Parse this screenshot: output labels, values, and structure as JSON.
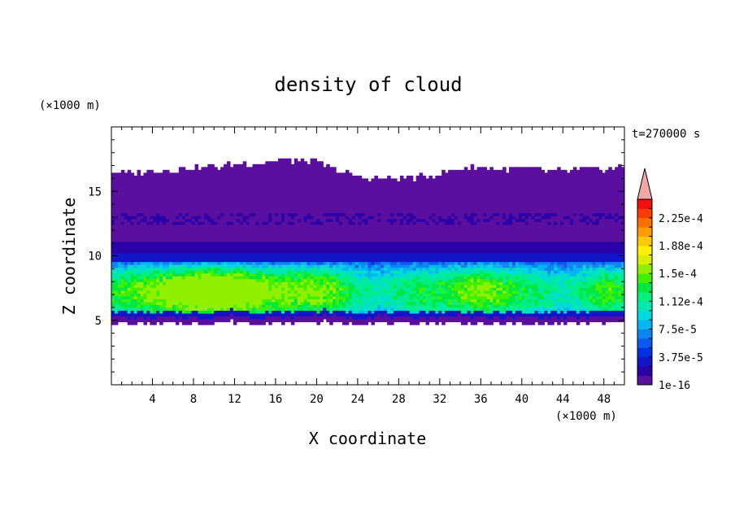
{
  "chart_data": {
    "type": "heatmap",
    "title": "density of cloud",
    "xlabel": "X coordinate",
    "ylabel": "Z coordinate",
    "x_unit": "(×1000 m)",
    "y_unit": "(×1000 m)",
    "time_label": "t=270000 s",
    "xlim": [
      0,
      50
    ],
    "ylim": [
      0,
      20
    ],
    "x_ticks": [
      4,
      8,
      12,
      16,
      20,
      24,
      28,
      32,
      36,
      40,
      44,
      48
    ],
    "y_ticks": [
      5,
      10,
      15
    ],
    "colorbar": {
      "labels": [
        "1e-16",
        "3.75e-5",
        "7.5e-5",
        "1.12e-4",
        "1.5e-4",
        "1.88e-4",
        "2.25e-4"
      ],
      "label_levels": [
        0,
        3,
        6,
        9,
        12,
        15,
        18
      ],
      "colors": [
        "#5a0f9e",
        "#2a00a8",
        "#1515c8",
        "#0030e0",
        "#0a5af0",
        "#0a86f0",
        "#05b4f0",
        "#00d8e0",
        "#00e8b0",
        "#00f080",
        "#00e840",
        "#40f000",
        "#90f000",
        "#d8f000",
        "#fff000",
        "#ffc800",
        "#ff9c00",
        "#ff6e00",
        "#ff3c00",
        "#f01010"
      ],
      "extend_color": "#f4a6a6"
    },
    "field": {
      "description_levels": "level index into colorbar colors along X",
      "x": [
        0,
        2,
        4,
        6,
        8,
        10,
        12,
        14,
        16,
        18,
        20,
        22,
        24,
        26,
        28,
        30,
        32,
        34,
        36,
        38,
        40,
        42,
        44,
        46,
        48,
        50
      ],
      "cloud_top_km": [
        16.6,
        16.4,
        16.5,
        16.7,
        16.8,
        16.9,
        17.1,
        17.2,
        17.4,
        17.4,
        17.3,
        16.6,
        16.2,
        16.0,
        16.1,
        16.1,
        16.3,
        16.8,
        16.8,
        16.7,
        16.8,
        16.6,
        16.6,
        16.7,
        16.7,
        16.9
      ],
      "cloud_base_km": [
        4.9,
        4.7,
        4.7,
        4.8,
        4.7,
        4.8,
        4.9,
        4.7,
        4.8,
        4.8,
        4.9,
        4.8,
        4.7,
        4.9,
        4.7,
        4.8,
        4.8,
        4.9,
        4.7,
        4.8,
        4.7,
        4.8,
        4.7,
        4.8,
        4.8,
        4.9
      ],
      "core_peak_level": [
        7,
        8,
        9,
        10,
        11,
        12,
        11,
        10,
        9,
        9,
        9,
        8,
        6,
        5,
        6,
        7,
        7,
        8,
        9,
        8,
        7,
        6,
        5,
        6,
        8,
        7
      ]
    }
  }
}
